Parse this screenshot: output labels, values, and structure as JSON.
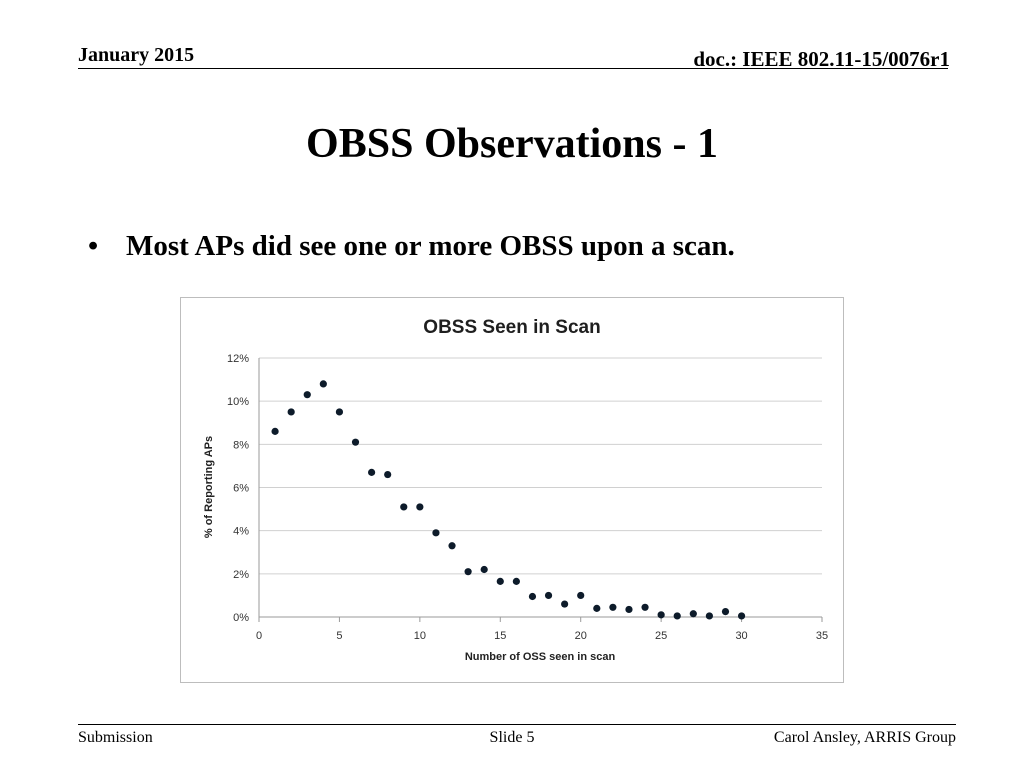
{
  "header": {
    "date": "January 2015",
    "doc_id": "doc.: IEEE 802.11-15/0076r1"
  },
  "slide": {
    "title": "OBSS Observations - 1",
    "bullet": "•",
    "bullet_text": "Most APs did see one or more OBSS upon a scan."
  },
  "chart_data": {
    "type": "scatter",
    "title": "OBSS Seen in Scan",
    "xlabel": "Number of OSS seen in scan",
    "ylabel": "% of Reporting APs",
    "xlim": [
      0,
      35
    ],
    "ylim": [
      0,
      12
    ],
    "x_ticks": [
      "0",
      "5",
      "10",
      "15",
      "20",
      "25",
      "30",
      "35"
    ],
    "y_ticks": [
      "0%",
      "2%",
      "4%",
      "6%",
      "8%",
      "10%",
      "12%"
    ],
    "grid": true,
    "legend": "none",
    "marker_color": "#0d1b2a",
    "points": [
      {
        "x": 1,
        "y": 8.6
      },
      {
        "x": 2,
        "y": 9.5
      },
      {
        "x": 3,
        "y": 10.3
      },
      {
        "x": 4,
        "y": 10.8
      },
      {
        "x": 5,
        "y": 9.5
      },
      {
        "x": 6,
        "y": 8.1
      },
      {
        "x": 7,
        "y": 6.7
      },
      {
        "x": 8,
        "y": 6.6
      },
      {
        "x": 9,
        "y": 5.1
      },
      {
        "x": 10,
        "y": 5.1
      },
      {
        "x": 11,
        "y": 3.9
      },
      {
        "x": 12,
        "y": 3.3
      },
      {
        "x": 13,
        "y": 2.1
      },
      {
        "x": 14,
        "y": 2.2
      },
      {
        "x": 15,
        "y": 1.65
      },
      {
        "x": 16,
        "y": 1.65
      },
      {
        "x": 17,
        "y": 0.95
      },
      {
        "x": 18,
        "y": 1.0
      },
      {
        "x": 19,
        "y": 0.6
      },
      {
        "x": 20,
        "y": 1.0
      },
      {
        "x": 21,
        "y": 0.4
      },
      {
        "x": 22,
        "y": 0.45
      },
      {
        "x": 23,
        "y": 0.35
      },
      {
        "x": 24,
        "y": 0.45
      },
      {
        "x": 25,
        "y": 0.1
      },
      {
        "x": 26,
        "y": 0.05
      },
      {
        "x": 27,
        "y": 0.15
      },
      {
        "x": 28,
        "y": 0.05
      },
      {
        "x": 29,
        "y": 0.25
      },
      {
        "x": 30,
        "y": 0.05
      }
    ]
  },
  "footer": {
    "left": "Submission",
    "center": "Slide 5",
    "right": "Carol Ansley, ARRIS Group"
  }
}
